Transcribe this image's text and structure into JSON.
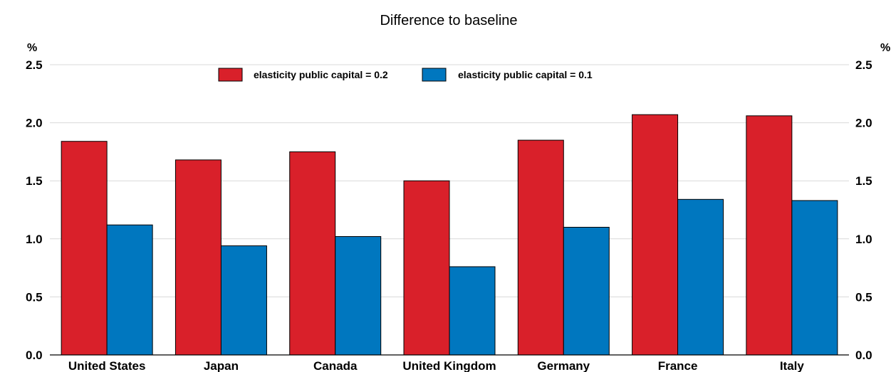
{
  "chart_data": {
    "type": "bar",
    "title": "Difference to baseline",
    "ylabel_left": "%",
    "ylabel_right": "%",
    "ylim": [
      0,
      2.5
    ],
    "yticks": [
      "0.0",
      "0.5",
      "1.0",
      "1.5",
      "2.0",
      "2.5"
    ],
    "ytick_values": [
      0,
      0.5,
      1.0,
      1.5,
      2.0,
      2.5
    ],
    "grid": true,
    "legend_position": "top-center",
    "categories": [
      "United States",
      "Japan",
      "Canada",
      "United Kingdom",
      "Germany",
      "France",
      "Italy"
    ],
    "series": [
      {
        "name": "elasticity public capital = 0.2",
        "color": "#d9202a",
        "values": [
          1.84,
          1.68,
          1.75,
          1.5,
          1.85,
          2.07,
          2.06
        ]
      },
      {
        "name": "elasticity public capital = 0.1",
        "color": "#0077bf",
        "values": [
          1.12,
          0.94,
          1.02,
          0.76,
          1.1,
          1.34,
          1.33
        ]
      }
    ]
  }
}
